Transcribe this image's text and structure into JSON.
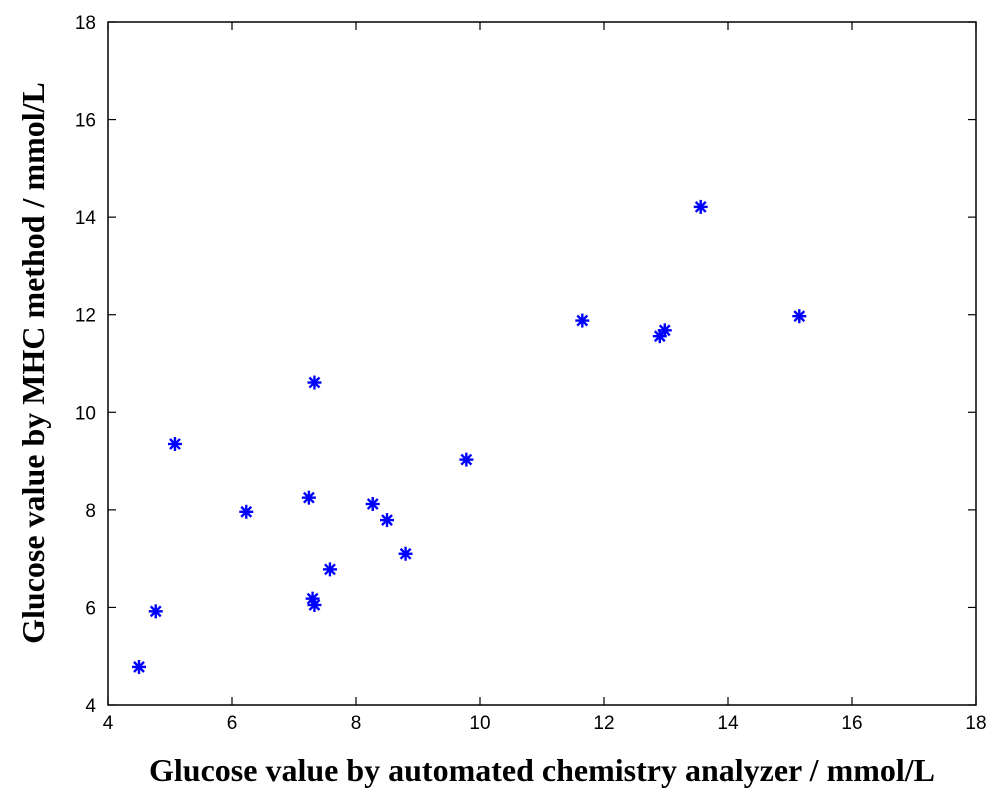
{
  "chart_data": {
    "type": "scatter",
    "title": "",
    "xlabel": "Glucose value by automated chemistry analyzer / mmol/L",
    "ylabel": "Glucose value by MHC method / mmol/L",
    "xlim": [
      4,
      18
    ],
    "ylim": [
      4,
      18
    ],
    "xticks": [
      4,
      6,
      8,
      10,
      12,
      14,
      16,
      18
    ],
    "yticks": [
      4,
      6,
      8,
      10,
      12,
      14,
      16,
      18
    ],
    "grid": false,
    "marker": "asterisk",
    "marker_color": "#0000ff",
    "series": [
      {
        "points": [
          {
            "x": 4.5,
            "y": 4.78
          },
          {
            "x": 4.77,
            "y": 5.92
          },
          {
            "x": 5.08,
            "y": 9.35
          },
          {
            "x": 6.23,
            "y": 7.96
          },
          {
            "x": 7.24,
            "y": 8.25
          },
          {
            "x": 7.3,
            "y": 6.18
          },
          {
            "x": 7.33,
            "y": 6.05
          },
          {
            "x": 7.33,
            "y": 10.61
          },
          {
            "x": 7.58,
            "y": 6.78
          },
          {
            "x": 8.27,
            "y": 8.12
          },
          {
            "x": 8.5,
            "y": 7.79
          },
          {
            "x": 8.8,
            "y": 7.1
          },
          {
            "x": 9.78,
            "y": 9.03
          },
          {
            "x": 11.65,
            "y": 11.88
          },
          {
            "x": 12.9,
            "y": 11.56
          },
          {
            "x": 12.98,
            "y": 11.68
          },
          {
            "x": 13.56,
            "y": 14.21
          },
          {
            "x": 15.15,
            "y": 11.97
          }
        ]
      }
    ]
  }
}
